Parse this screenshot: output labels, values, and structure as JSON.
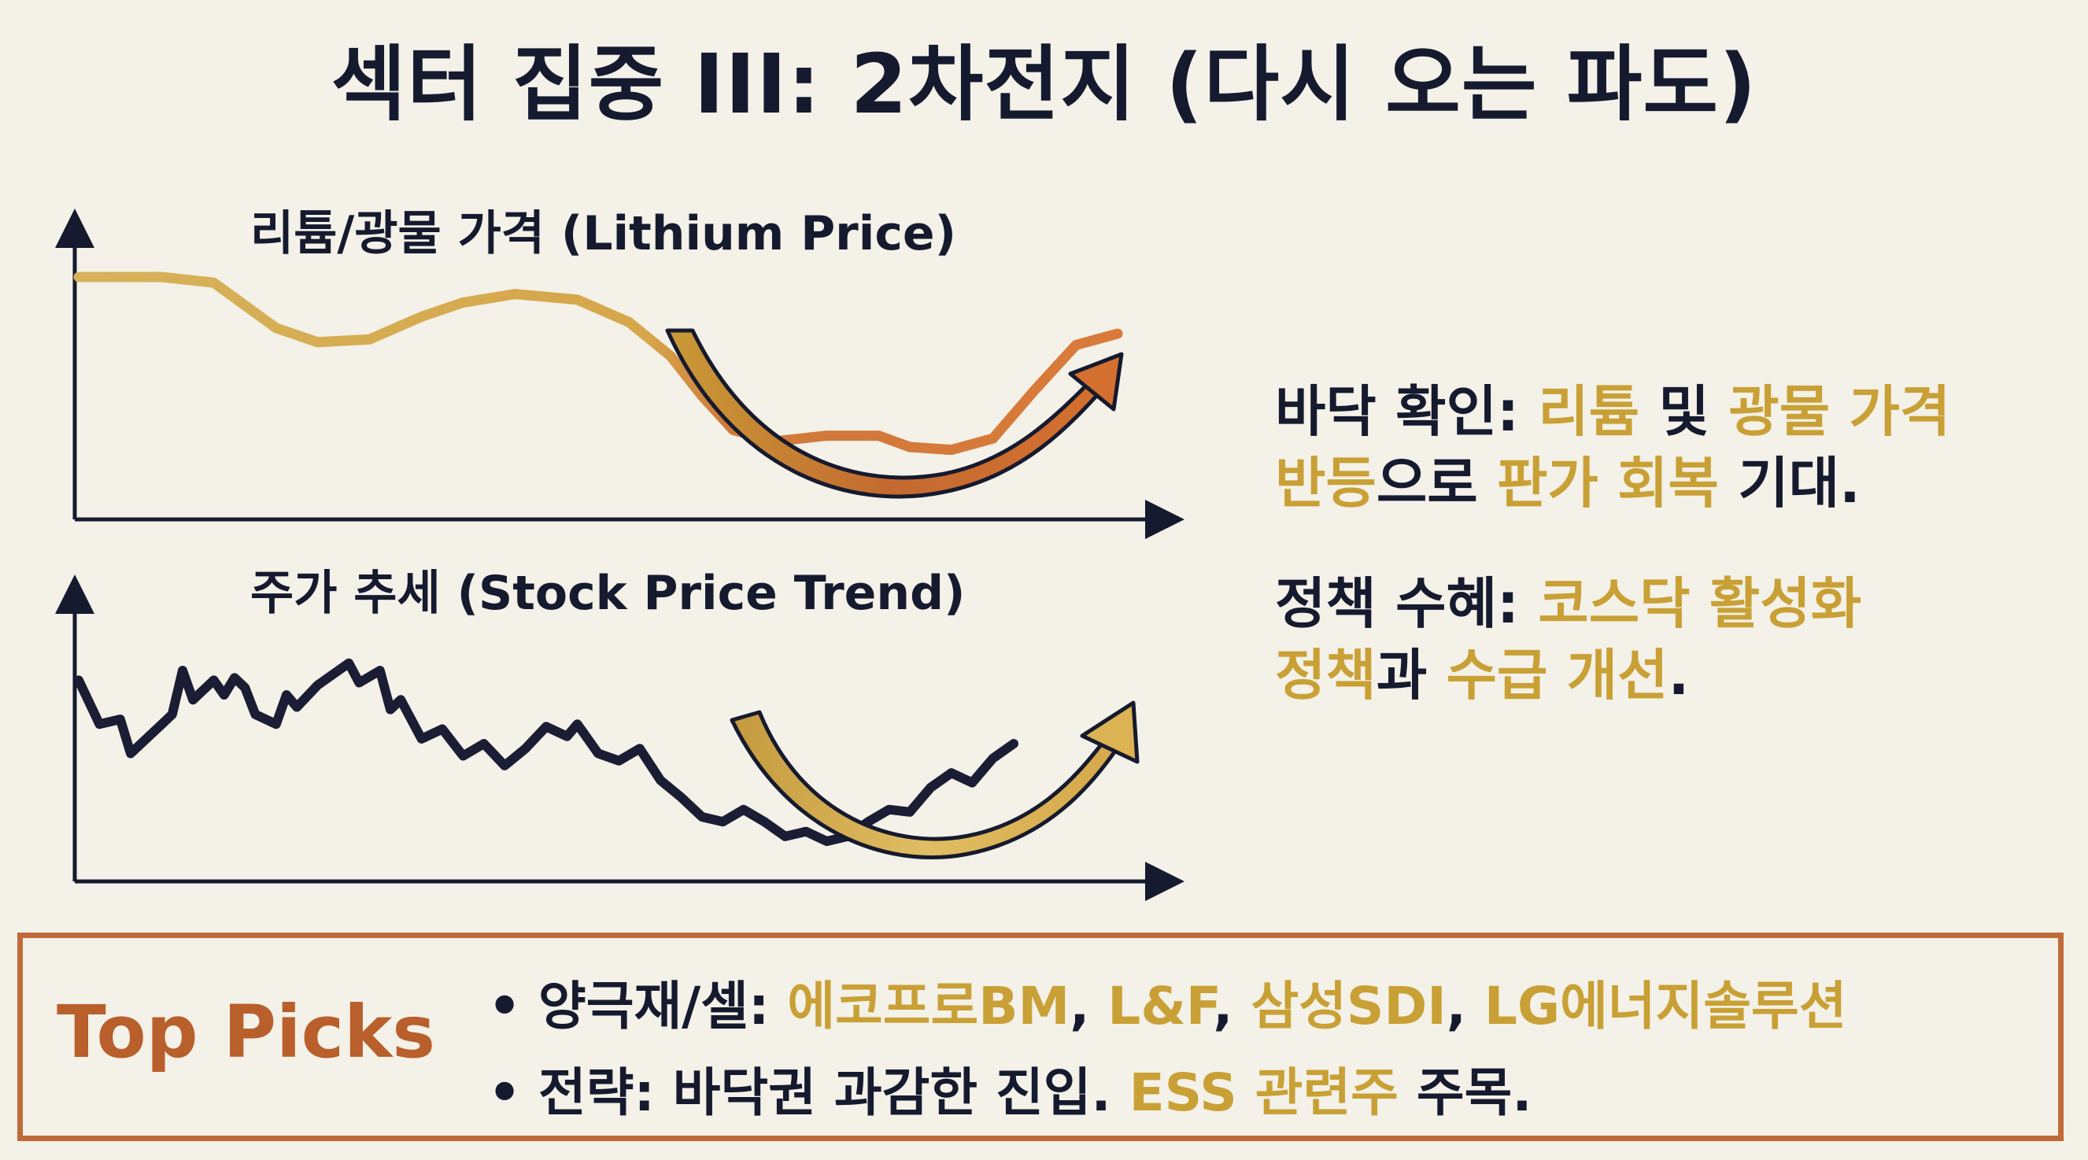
{
  "title": "섹터 집중 III: 2차전지 (다시 오는 파도)",
  "colors": {
    "navy": "#161a2e",
    "gold": "#c9a035",
    "orange": "#c06a3a",
    "background": "#f3f1e8"
  },
  "chart_data": [
    {
      "type": "line",
      "title": "리튬/광물 가격 (Lithium Price)",
      "xlabel": "",
      "ylabel": "",
      "axes_ticks": false,
      "grid": false,
      "ylim": [
        0,
        100
      ],
      "x": [
        0,
        4,
        8,
        13,
        19,
        23,
        28,
        33,
        37,
        42,
        48,
        53,
        57,
        60,
        63,
        67,
        72,
        77,
        80,
        84,
        88,
        92,
        96,
        100
      ],
      "series": [
        {
          "values": [
            80,
            80,
            80,
            78,
            62,
            57,
            58,
            66,
            71,
            74,
            72,
            64,
            52,
            38,
            26,
            22,
            24,
            24,
            20,
            19,
            23,
            40,
            56,
            60
          ]
        }
      ],
      "annotation": "curved-upward-arrow"
    },
    {
      "type": "line",
      "title": "주가 추세 (Stock Price Trend)",
      "xlabel": "",
      "ylabel": "",
      "axes_ticks": false,
      "grid": false,
      "ylim": [
        0,
        100
      ],
      "x": [
        0,
        2,
        4,
        5,
        6,
        8,
        9,
        10,
        11,
        13,
        14,
        15,
        16,
        17,
        19,
        20,
        21,
        23,
        25,
        26,
        27,
        29,
        30,
        31,
        33,
        35,
        37,
        39,
        41,
        43,
        45,
        47,
        48,
        50,
        52,
        54,
        56,
        58,
        60,
        62,
        64,
        66,
        68,
        70,
        72,
        74,
        76,
        78,
        80,
        82,
        84,
        86,
        88,
        90
      ],
      "series": [
        {
          "values": [
            76,
            58,
            60,
            46,
            50,
            58,
            62,
            80,
            68,
            76,
            70,
            77,
            73,
            62,
            58,
            70,
            65,
            74,
            80,
            83,
            75,
            80,
            64,
            68,
            52,
            56,
            45,
            50,
            41,
            48,
            57,
            53,
            58,
            46,
            43,
            48,
            35,
            28,
            20,
            18,
            23,
            18,
            12,
            14,
            10,
            12,
            18,
            23,
            22,
            32,
            38,
            34,
            44,
            50
          ]
        }
      ],
      "annotation": "curved-upward-arrow"
    }
  ],
  "points": [
    {
      "parts": [
        {
          "text": "바닥 확인: ",
          "style": "dark"
        },
        {
          "text": "리튬",
          "style": "gold"
        },
        {
          "text": " 및 ",
          "style": "dark"
        },
        {
          "text": "광물 가격",
          "style": "gold"
        },
        {
          "text": "반등",
          "style": "gold",
          "break_before": true
        },
        {
          "text": "으로 ",
          "style": "dark"
        },
        {
          "text": "판가 회복",
          "style": "gold"
        },
        {
          "text": " 기대.",
          "style": "dark"
        }
      ]
    },
    {
      "parts": [
        {
          "text": "정책 수혜: ",
          "style": "dark"
        },
        {
          "text": "코스닥 활성화",
          "style": "gold"
        },
        {
          "text": "정책",
          "style": "gold",
          "break_before": true
        },
        {
          "text": "과 ",
          "style": "dark"
        },
        {
          "text": "수급 개선",
          "style": "gold"
        },
        {
          "text": ".",
          "style": "dark"
        }
      ]
    }
  ],
  "picks": {
    "label": "Top Picks",
    "bullet": "•",
    "line1": {
      "prefix": "양극재/셀: ",
      "items": [
        "에코프로BM",
        "L&F",
        "삼성SDI",
        "LG에너지솔루션"
      ],
      "separator": ", "
    },
    "line2": {
      "prefix": "전략: 바닥권 과감한 진입. ",
      "highlight": "ESS 관련주",
      "suffix": " 주목."
    }
  }
}
